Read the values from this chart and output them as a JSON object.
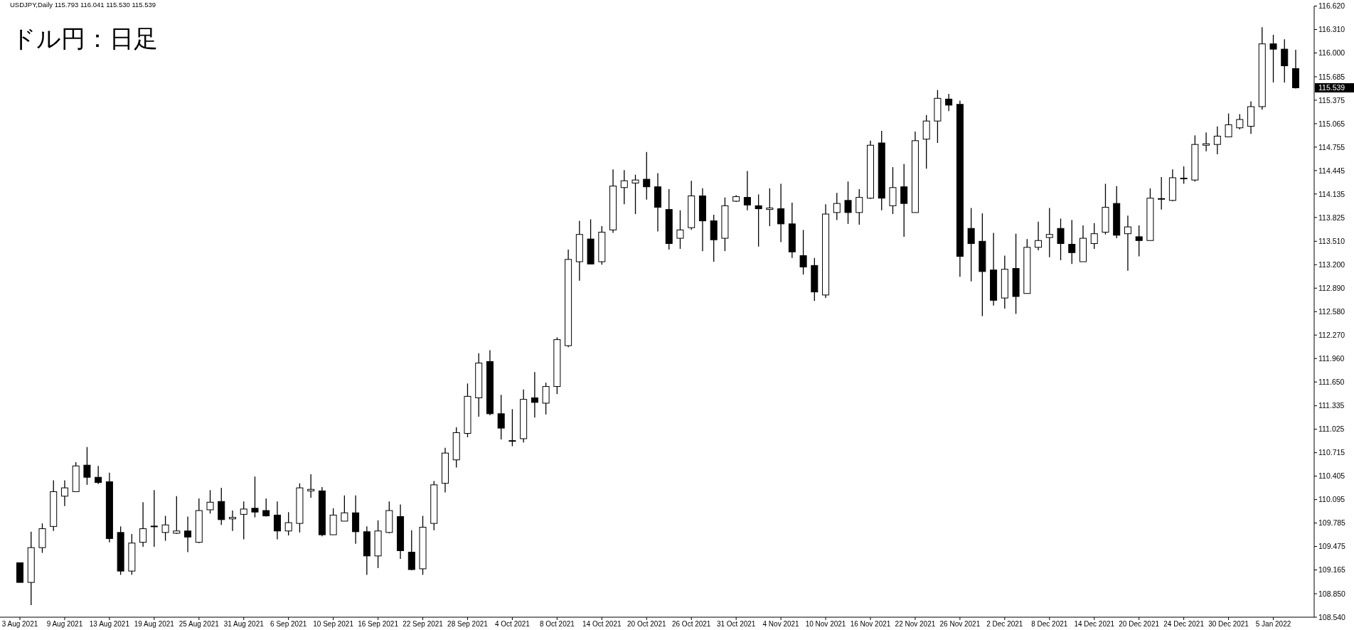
{
  "chart_data": {
    "type": "candlestick",
    "title": "ドル円：日足",
    "annotations": [
      "USDJPY,Daily 115.793 116.041 115.530 115.539",
      "115.539"
    ],
    "categories": [
      "3 Aug 2021",
      null,
      null,
      null,
      "9 Aug 2021",
      null,
      null,
      null,
      "13 Aug 2021",
      null,
      null,
      null,
      "19 Aug 2021",
      null,
      null,
      null,
      "25 Aug 2021",
      null,
      null,
      null,
      "31 Aug 2021",
      null,
      null,
      null,
      "6 Sep 2021",
      null,
      null,
      null,
      "10 Sep 2021",
      null,
      null,
      null,
      "16 Sep 2021",
      null,
      null,
      null,
      "22 Sep 2021",
      null,
      null,
      null,
      "28 Sep 2021",
      null,
      null,
      null,
      "4 Oct 2021",
      null,
      null,
      null,
      "8 Oct 2021",
      null,
      null,
      null,
      "14 Oct 2021",
      null,
      null,
      null,
      "20 Oct 2021",
      null,
      null,
      null,
      "26 Oct 2021",
      null,
      null,
      null,
      "31 Oct 2021",
      null,
      null,
      null,
      "4 Nov 2021",
      null,
      null,
      null,
      "10 Nov 2021",
      null,
      null,
      null,
      "16 Nov 2021",
      null,
      null,
      null,
      "22 Nov 2021",
      null,
      null,
      null,
      "26 Nov 2021",
      null,
      null,
      null,
      "2 Dec 2021",
      null,
      null,
      null,
      "8 Dec 2021",
      null,
      null,
      null,
      "14 Dec 2021",
      null,
      null,
      null,
      "20 Dec 2021",
      null,
      null,
      null,
      "24 Dec 2021",
      null,
      null,
      null,
      "30 Dec 2021",
      null,
      null,
      null,
      "5 Jan 2022",
      null,
      null
    ],
    "ohlc": [
      [
        109.26,
        109.26,
        109.0,
        109.0
      ],
      [
        109.0,
        109.67,
        108.7,
        109.46
      ],
      [
        109.46,
        109.78,
        109.39,
        109.71
      ],
      [
        109.74,
        110.35,
        109.68,
        110.2
      ],
      [
        110.14,
        110.35,
        110.01,
        110.25
      ],
      [
        110.2,
        110.59,
        110.2,
        110.54
      ],
      [
        110.55,
        110.79,
        110.29,
        110.39
      ],
      [
        110.39,
        110.54,
        110.3,
        110.32
      ],
      [
        110.33,
        110.45,
        109.53,
        109.58
      ],
      [
        109.66,
        109.74,
        109.1,
        109.15
      ],
      [
        109.15,
        109.64,
        109.1,
        109.52
      ],
      [
        109.53,
        110.06,
        109.47,
        109.71
      ],
      [
        109.74,
        110.22,
        109.47,
        109.74
      ],
      [
        109.66,
        109.88,
        109.55,
        109.76
      ],
      [
        109.65,
        110.14,
        109.64,
        109.68
      ],
      [
        109.68,
        109.87,
        109.4,
        109.6
      ],
      [
        109.53,
        110.11,
        109.52,
        109.95
      ],
      [
        109.96,
        110.22,
        109.91,
        110.06
      ],
      [
        110.07,
        110.25,
        109.76,
        109.83
      ],
      [
        109.84,
        109.95,
        109.68,
        109.86
      ],
      [
        109.9,
        110.07,
        109.57,
        109.97
      ],
      [
        109.98,
        110.4,
        109.86,
        109.93
      ],
      [
        109.95,
        110.11,
        109.87,
        109.88
      ],
      [
        109.89,
        110.07,
        109.57,
        109.68
      ],
      [
        109.68,
        109.93,
        109.62,
        109.79
      ],
      [
        109.78,
        110.31,
        109.66,
        110.25
      ],
      [
        110.21,
        110.43,
        110.12,
        110.23
      ],
      [
        110.21,
        110.26,
        109.61,
        109.63
      ],
      [
        109.63,
        109.98,
        109.63,
        109.89
      ],
      [
        109.81,
        110.15,
        109.81,
        109.92
      ],
      [
        109.92,
        110.15,
        109.51,
        109.67
      ],
      [
        109.67,
        109.74,
        109.1,
        109.35
      ],
      [
        109.35,
        109.82,
        109.19,
        109.68
      ],
      [
        109.66,
        110.07,
        109.65,
        109.95
      ],
      [
        109.87,
        110.03,
        109.31,
        109.42
      ],
      [
        109.4,
        109.69,
        109.16,
        109.17
      ],
      [
        109.18,
        109.88,
        109.1,
        109.73
      ],
      [
        109.78,
        110.34,
        109.69,
        110.29
      ],
      [
        110.31,
        110.78,
        110.19,
        110.71
      ],
      [
        110.62,
        111.05,
        110.52,
        110.98
      ],
      [
        110.97,
        111.63,
        110.92,
        111.46
      ],
      [
        111.44,
        112.03,
        111.19,
        111.9
      ],
      [
        111.92,
        112.07,
        111.21,
        111.23
      ],
      [
        111.23,
        111.48,
        110.89,
        111.04
      ],
      [
        110.87,
        111.29,
        110.8,
        110.87
      ],
      [
        110.9,
        111.55,
        110.85,
        111.42
      ],
      [
        111.44,
        111.78,
        111.18,
        111.38
      ],
      [
        111.37,
        111.64,
        111.22,
        111.59
      ],
      [
        111.59,
        112.24,
        111.49,
        112.21
      ],
      [
        112.13,
        113.4,
        112.11,
        113.27
      ],
      [
        113.24,
        113.78,
        112.99,
        113.6
      ],
      [
        113.54,
        113.8,
        113.21,
        113.21
      ],
      [
        113.24,
        113.71,
        113.2,
        113.63
      ],
      [
        113.66,
        114.46,
        113.62,
        114.24
      ],
      [
        114.22,
        114.45,
        114.0,
        114.31
      ],
      [
        114.28,
        114.39,
        113.87,
        114.32
      ],
      [
        114.33,
        114.69,
        114.06,
        114.23
      ],
      [
        114.23,
        114.41,
        113.64,
        113.96
      ],
      [
        113.93,
        114.2,
        113.4,
        113.48
      ],
      [
        113.55,
        113.92,
        113.41,
        113.66
      ],
      [
        113.69,
        114.31,
        113.66,
        114.11
      ],
      [
        114.11,
        114.21,
        113.38,
        113.78
      ],
      [
        113.78,
        113.86,
        113.24,
        113.53
      ],
      [
        113.55,
        114.09,
        113.38,
        113.98
      ],
      [
        114.04,
        114.12,
        114.03,
        114.1
      ],
      [
        114.09,
        114.44,
        113.92,
        113.99
      ],
      [
        113.98,
        114.13,
        113.44,
        113.94
      ],
      [
        113.93,
        114.21,
        113.71,
        113.95
      ],
      [
        113.94,
        114.27,
        113.5,
        113.74
      ],
      [
        113.74,
        114.02,
        113.29,
        113.37
      ],
      [
        113.32,
        113.66,
        113.07,
        113.17
      ],
      [
        113.19,
        113.29,
        112.72,
        112.84
      ],
      [
        112.8,
        114.0,
        112.76,
        113.87
      ],
      [
        113.89,
        114.15,
        113.79,
        114.01
      ],
      [
        114.05,
        114.3,
        113.74,
        113.89
      ],
      [
        113.89,
        114.2,
        113.73,
        114.09
      ],
      [
        114.08,
        114.84,
        114.07,
        114.78
      ],
      [
        114.81,
        114.97,
        113.92,
        114.08
      ],
      [
        113.98,
        114.49,
        113.87,
        114.22
      ],
      [
        114.23,
        114.53,
        113.57,
        114.01
      ],
      [
        113.89,
        114.96,
        113.89,
        114.84
      ],
      [
        114.86,
        115.18,
        114.47,
        115.1
      ],
      [
        115.1,
        115.51,
        114.81,
        115.4
      ],
      [
        115.39,
        115.46,
        115.23,
        115.31
      ],
      [
        115.32,
        115.37,
        113.04,
        113.31
      ],
      [
        113.68,
        113.95,
        112.98,
        113.48
      ],
      [
        113.51,
        113.88,
        112.52,
        113.11
      ],
      [
        113.13,
        113.62,
        112.66,
        112.73
      ],
      [
        112.76,
        113.32,
        112.62,
        113.14
      ],
      [
        113.15,
        113.61,
        112.55,
        112.78
      ],
      [
        112.82,
        113.54,
        112.82,
        113.43
      ],
      [
        113.43,
        113.77,
        113.39,
        113.52
      ],
      [
        113.56,
        113.95,
        113.3,
        113.6
      ],
      [
        113.68,
        113.81,
        113.26,
        113.48
      ],
      [
        113.47,
        113.79,
        113.21,
        113.36
      ],
      [
        113.24,
        113.72,
        113.24,
        113.55
      ],
      [
        113.48,
        113.75,
        113.41,
        113.61
      ],
      [
        113.63,
        114.27,
        113.6,
        113.96
      ],
      [
        114.01,
        114.24,
        113.55,
        113.59
      ],
      [
        113.61,
        113.85,
        113.12,
        113.7
      ],
      [
        113.57,
        113.72,
        113.31,
        113.52
      ],
      [
        113.52,
        114.21,
        113.52,
        114.08
      ],
      [
        114.07,
        114.36,
        113.93,
        114.07
      ],
      [
        114.05,
        114.46,
        114.04,
        114.35
      ],
      [
        114.34,
        114.5,
        114.27,
        114.34
      ],
      [
        114.32,
        114.91,
        114.3,
        114.79
      ],
      [
        114.78,
        114.95,
        114.7,
        114.8
      ],
      [
        114.79,
        115.03,
        114.66,
        114.9
      ],
      [
        114.89,
        115.2,
        114.89,
        115.05
      ],
      [
        115.01,
        115.19,
        114.99,
        115.12
      ],
      [
        115.03,
        115.36,
        114.93,
        115.29
      ],
      [
        115.29,
        116.34,
        115.25,
        116.12
      ],
      [
        116.12,
        116.24,
        115.61,
        116.05
      ],
      [
        116.05,
        116.18,
        115.61,
        115.83
      ],
      [
        115.793,
        116.041,
        115.53,
        115.539
      ]
    ],
    "ylim": [
      108.54,
      116.62
    ],
    "yticks": [
      {
        "value": 116.62,
        "label": "116.620"
      },
      {
        "value": 116.31,
        "label": "116.310"
      },
      {
        "value": 116.0,
        "label": "116.000"
      },
      {
        "value": 115.685,
        "label": "115.685"
      },
      {
        "value": 115.375,
        "label": "115.375"
      },
      {
        "value": 115.065,
        "label": "115.065"
      },
      {
        "value": 114.755,
        "label": "114.755"
      },
      {
        "value": 114.445,
        "label": "114.445"
      },
      {
        "value": 114.135,
        "label": "114.135"
      },
      {
        "value": 113.825,
        "label": "113.825"
      },
      {
        "value": 113.51,
        "label": "113.510"
      },
      {
        "value": 113.2,
        "label": "113.200"
      },
      {
        "value": 112.89,
        "label": "112.890"
      },
      {
        "value": 112.58,
        "label": "112.580"
      },
      {
        "value": 112.27,
        "label": "112.270"
      },
      {
        "value": 111.96,
        "label": "111.960"
      },
      {
        "value": 111.65,
        "label": "111.650"
      },
      {
        "value": 111.335,
        "label": "111.335"
      },
      {
        "value": 111.025,
        "label": "111.025"
      },
      {
        "value": 110.715,
        "label": "110.715"
      },
      {
        "value": 110.405,
        "label": "110.405"
      },
      {
        "value": 110.095,
        "label": "110.095"
      },
      {
        "value": 109.785,
        "label": "109.785"
      },
      {
        "value": 109.475,
        "label": "109.475"
      },
      {
        "value": 109.165,
        "label": "109.165"
      },
      {
        "value": 108.85,
        "label": "108.850"
      },
      {
        "value": 108.54,
        "label": "108.540"
      }
    ]
  }
}
